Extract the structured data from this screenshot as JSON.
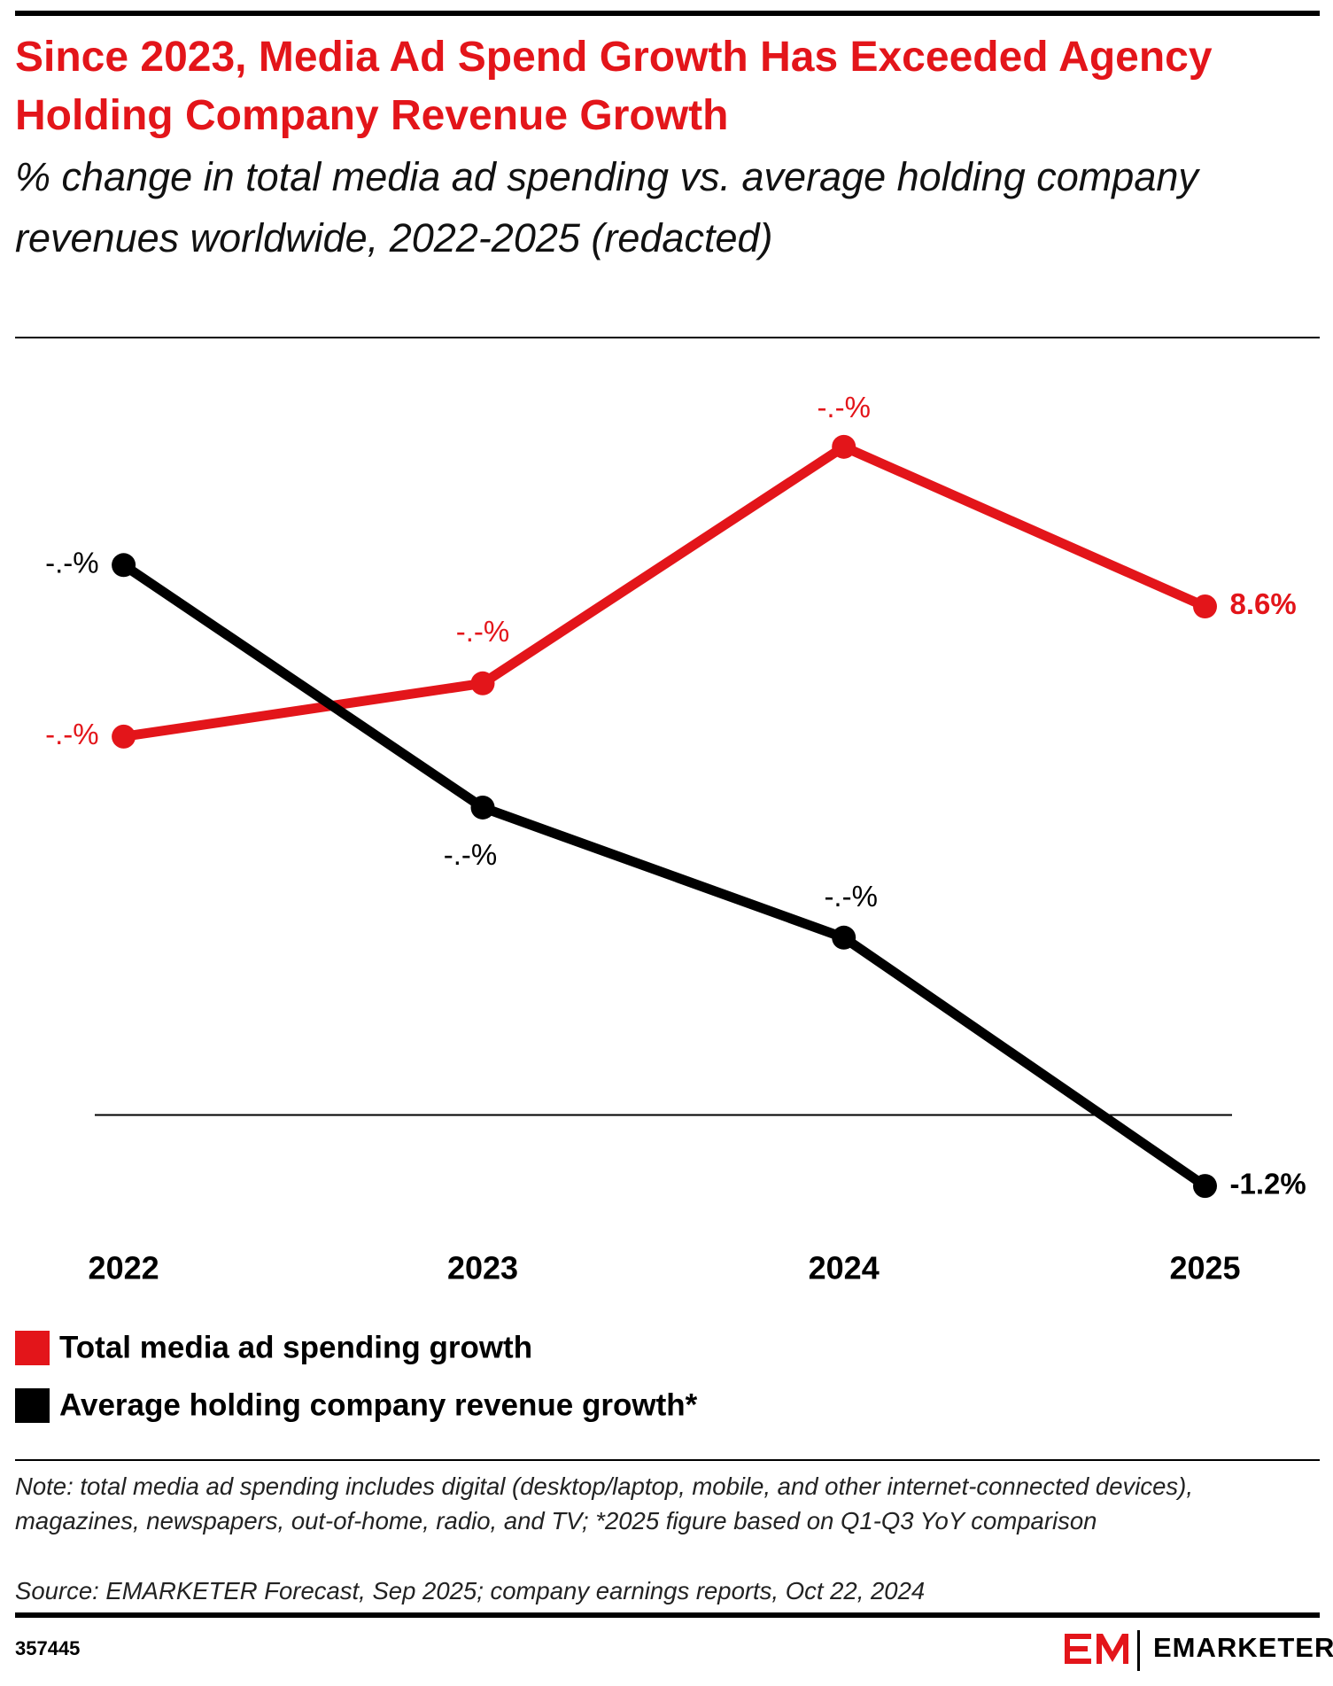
{
  "chart_data": {
    "type": "line",
    "title": "Since 2023, Media Ad Spend Growth Has Exceeded Agency Holding Company Revenue Growth",
    "subtitle": "% change in total media ad spending vs. average holding company revenues worldwide, 2022-2025 (redacted)",
    "categories": [
      "2022",
      "2023",
      "2024",
      "2025"
    ],
    "series": [
      {
        "name": "Total media ad spending growth",
        "color": "#e3151a",
        "values": [
          6.4,
          7.3,
          11.3,
          8.6
        ],
        "value_labels": [
          "-.-%",
          "-.-%",
          "-.-%",
          "8.6%"
        ]
      },
      {
        "name": "Average holding company revenue growth*",
        "color": "#000000",
        "values": [
          9.3,
          5.2,
          3.0,
          -1.2
        ],
        "value_labels": [
          "-.-%",
          "-.-%",
          "-.-%",
          "-1.2%"
        ]
      }
    ],
    "ylim": [
      -2,
      12
    ],
    "legend": "bottom-left",
    "note": "Note: total media ad spending includes digital (desktop/laptop, mobile, and other internet-connected devices), magazines, newspapers, out-of-home, radio, and TV; *2025 figure based on Q1-Q3 YoY comparison",
    "source": "Source: EMARKETER Forecast, Sep 2025; company earnings reports, Oct 22, 2024",
    "chart_id": "357445",
    "brand": "EMARKETER"
  }
}
